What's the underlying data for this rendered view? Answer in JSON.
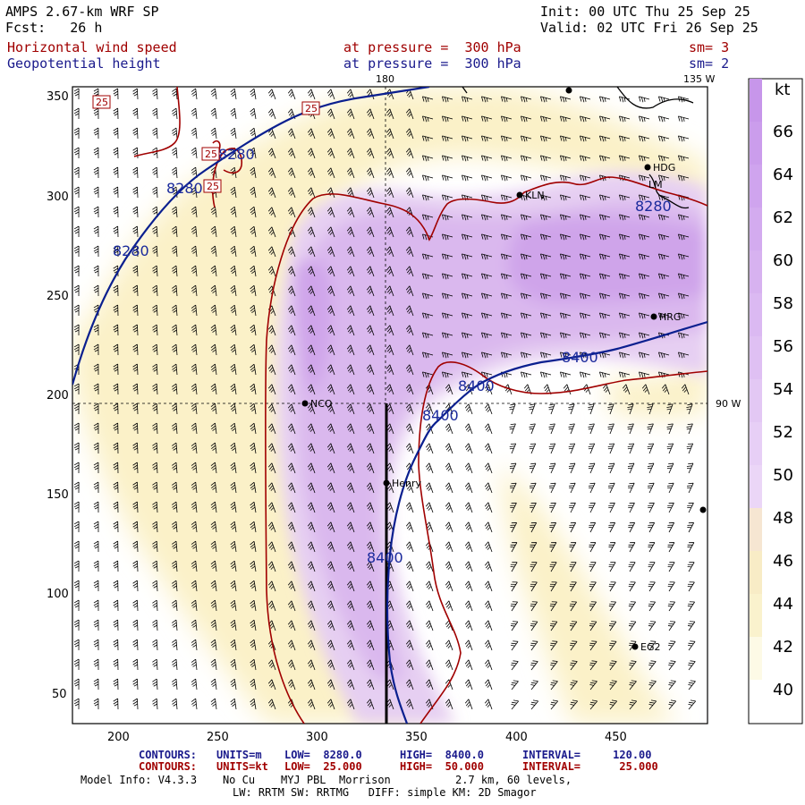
{
  "header": {
    "model": "AMPS 2.67-km WRF SP",
    "fcst": "Fcst:   26 h",
    "init": "Init: 00 UTC Thu 25 Sep 25",
    "valid": "Valid: 02 UTC Fri 26 Sep 25",
    "field1": "Horizontal wind speed",
    "field1_level": "at pressure =  300 hPa",
    "field1_sm": "sm= 3",
    "field2": "Geopotential height",
    "field2_level": "at pressure =  300 hPa",
    "field2_sm": "sm= 2"
  },
  "map": {
    "x_ticks": [
      "200",
      "250",
      "300",
      "350",
      "400",
      "450"
    ],
    "y_ticks": [
      "350",
      "300",
      "250",
      "200",
      "150",
      "100",
      "50"
    ],
    "meridian_labels": {
      "top_180": "180",
      "top_135w": "135 W",
      "right_90w": "90 W"
    },
    "stations": [
      {
        "id": "NCO",
        "label": "NCO"
      },
      {
        "id": "Henry",
        "label": "Henry"
      },
      {
        "id": "KLN",
        "label": "KLN"
      },
      {
        "id": "HDG",
        "label": "HDG"
      },
      {
        "id": "HRG",
        "label": "HRG"
      },
      {
        "id": "EG2",
        "label": "EG2"
      },
      {
        "id": "LM",
        "label": "LM"
      }
    ],
    "height_labels": [
      "8280",
      "8280",
      "8280",
      "8280",
      "8400",
      "8400",
      "8400",
      "8400"
    ],
    "speed_labels": [
      "25",
      "25",
      "25",
      "25"
    ],
    "colors": {
      "height_contour": "#0a1f8f",
      "speed_contour": "#a00000",
      "shade_low": "#fbf3cf",
      "shade_high": "#cc99ee"
    }
  },
  "colorbar": {
    "unit": "kt",
    "labels": [
      "66",
      "64",
      "62",
      "60",
      "58",
      "56",
      "54",
      "52",
      "50",
      "48",
      "46",
      "44",
      "42",
      "40"
    ]
  },
  "footer": {
    "c1_title": "CONTOURS:",
    "c1_units": "UNITS=m",
    "c1_low": "LOW=  8280.0",
    "c1_high": "HIGH=  8400.0",
    "c1_int": "INTERVAL=     120.00",
    "c2_title": "CONTOURS:",
    "c2_units": "UNITS=kt",
    "c2_low": "LOW=  25.000",
    "c2_high": "HIGH=  50.000",
    "c2_int": "INTERVAL=      25.000",
    "model_info": "Model Info: V4.3.3    No Cu    MYJ PBL  Morrison          2.7 km, 60 levels,",
    "model_info2": "LW: RRTM SW: RRTMG   DIFF: simple KM: 2D Smagor"
  }
}
